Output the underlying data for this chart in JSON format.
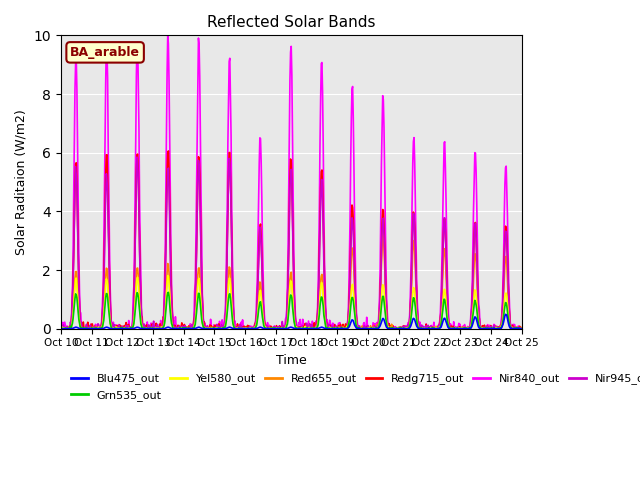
{
  "title": "Reflected Solar Bands",
  "xlabel": "Time",
  "ylabel": "Solar Raditaion (W/m2)",
  "ylim": [
    0,
    10.0
  ],
  "annotation": "BA_arable",
  "background_color": "#e8e8e8",
  "series": {
    "Blu475_out": {
      "color": "#0000ff",
      "linewidth": 1.2
    },
    "Grn535_out": {
      "color": "#00cc00",
      "linewidth": 1.2
    },
    "Yel580_out": {
      "color": "#ffff00",
      "linewidth": 1.2
    },
    "Red655_out": {
      "color": "#ff8800",
      "linewidth": 1.2
    },
    "Redg715_out": {
      "color": "#ff0000",
      "linewidth": 1.2
    },
    "Nir840_out": {
      "color": "#ff00ff",
      "linewidth": 1.2
    },
    "Nir945_out": {
      "color": "#cc00cc",
      "linewidth": 1.2
    }
  },
  "xtick_labels": [
    "Oct 10",
    "Oct 11",
    "Oct 12",
    "Oct 13",
    "Oct 14",
    "Oct 15",
    "Oct 16",
    "Oct 17",
    "Oct 18",
    "Oct 19",
    "Oct 20",
    "Oct 21",
    "Oct 22",
    "Oct 23",
    "Oct 24",
    "Oct 25"
  ],
  "days": 15,
  "samples_per_day": 48
}
